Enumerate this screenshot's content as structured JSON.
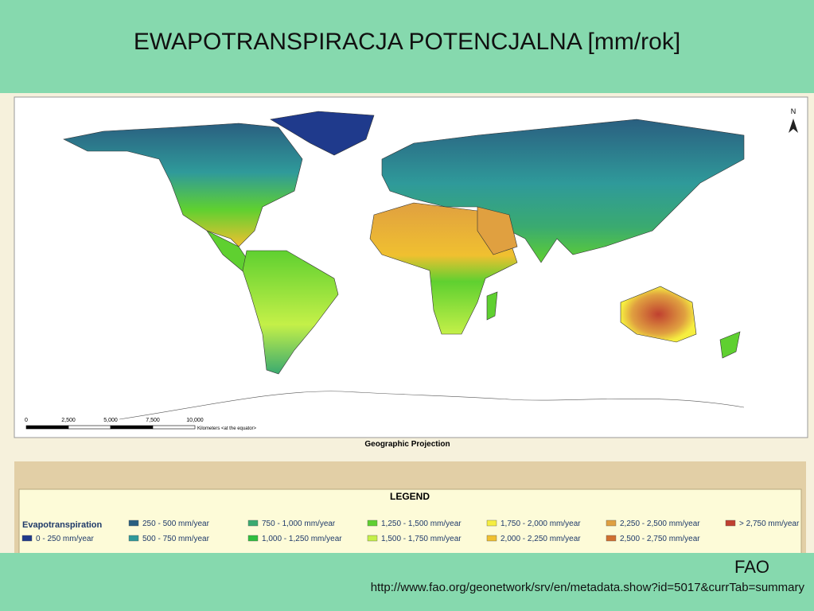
{
  "title": "EWAPOTRANSPIRACJA POTENCJALNA [mm/rok]",
  "map": {
    "north": "N",
    "scale_labels": [
      "0",
      "2,500",
      "5,000",
      "7,500",
      "10,000"
    ],
    "scale_unit": "Kilometers <at the equator>",
    "projection": "Geographic Projection"
  },
  "legend": {
    "title": "LEGEND",
    "variable": "Evapotranspiration",
    "items": [
      {
        "label": "0 - 250 mm/year",
        "color": "#1f3a8c"
      },
      {
        "label": "250 - 500 mm/year",
        "color": "#2a5f80"
      },
      {
        "label": "500 - 750 mm/year",
        "color": "#2f9a9a"
      },
      {
        "label": "750 - 1,000 mm/year",
        "color": "#3aaa70"
      },
      {
        "label": "1,000 - 1,250 mm/year",
        "color": "#2fbf3f"
      },
      {
        "label": "1,250 - 1,500 mm/year",
        "color": "#5fd030"
      },
      {
        "label": "1,500 - 1,750 mm/year",
        "color": "#c4f048"
      },
      {
        "label": "1,750 - 2,000 mm/year",
        "color": "#f6ee40"
      },
      {
        "label": "2,000 - 2,250 mm/year",
        "color": "#f0c030"
      },
      {
        "label": "2,250 - 2,500 mm/year",
        "color": "#e0a040"
      },
      {
        "label": "2,500 - 2,750 mm/year",
        "color": "#d07030"
      },
      {
        "label": "> 2,750 mm/year",
        "color": "#c04030"
      }
    ]
  },
  "source": {
    "name": "FAO",
    "url": "http://www.fao.org/geonetwork/srv/en/metadata.show?id=5017&currTab=summary"
  }
}
